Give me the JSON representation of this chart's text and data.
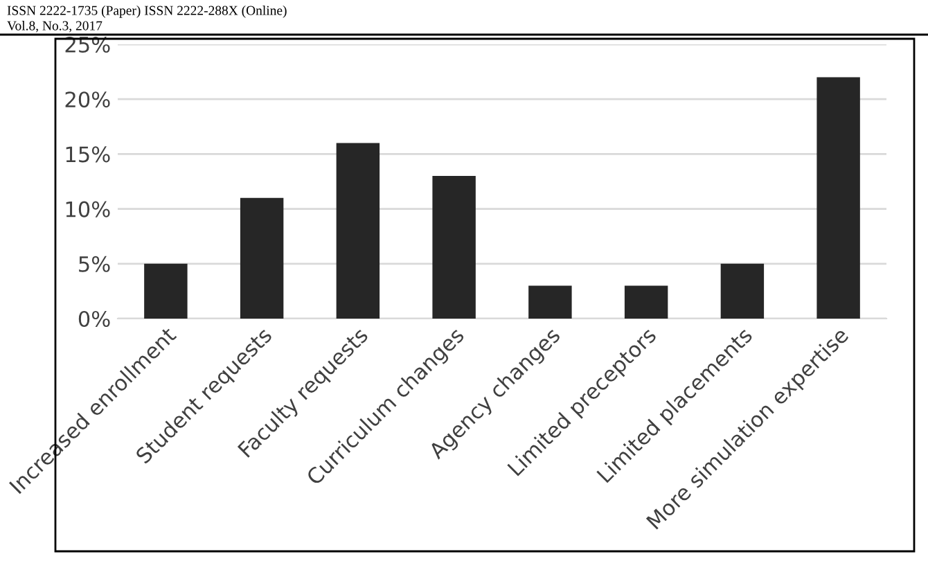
{
  "chart_data": {
    "type": "bar",
    "categories": [
      "Increased enrollment",
      "Student requests",
      "Faculty requests",
      "Curriculum changes",
      "Agency changes",
      "Limited preceptors",
      "Limited placements",
      "More simulation expertise"
    ],
    "values": [
      5,
      11,
      16,
      13,
      3,
      3,
      5,
      22
    ],
    "color": "#262626",
    "ylim": [
      0,
      25
    ],
    "yticks": [
      {
        "value": 0,
        "label": "0%"
      },
      {
        "value": 5,
        "label": "5%"
      },
      {
        "value": 10,
        "label": "10%"
      },
      {
        "value": 15,
        "label": "15%"
      },
      {
        "value": 20,
        "label": "20%"
      },
      {
        "value": 25,
        "label": "25%"
      }
    ],
    "grid": "y",
    "legend": false,
    "annotations": [
      "ISSN 2222-1735 (Paper) ISSN 2222-288X (Online)",
      "Vol.8, No.3, 2017"
    ]
  }
}
